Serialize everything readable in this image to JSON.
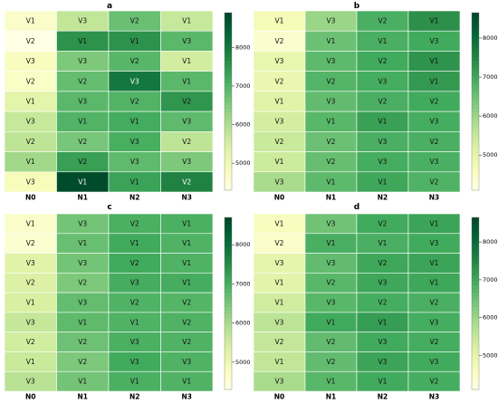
{
  "colorscale": [
    "#ffffe5",
    "#f7fcb9",
    "#d9f0a3",
    "#addd8e",
    "#78c679",
    "#41ab5d",
    "#238443",
    "#006837",
    "#004529"
  ],
  "chart_data": [
    {
      "type": "heatmap",
      "title": "a",
      "columns": [
        "N0",
        "N1",
        "N2",
        "N3"
      ],
      "labels": [
        [
          "V1",
          "V3",
          "V2",
          "V1"
        ],
        [
          "V2",
          "V1",
          "V1",
          "V3"
        ],
        [
          "V3",
          "V3",
          "V2",
          "V1"
        ],
        [
          "V2",
          "V2",
          "V3",
          "V1"
        ],
        [
          "V1",
          "V3",
          "V2",
          "V2"
        ],
        [
          "V3",
          "V1",
          "V1",
          "V3"
        ],
        [
          "V2",
          "V2",
          "V3",
          "V2"
        ],
        [
          "V1",
          "V2",
          "V3",
          "V3"
        ],
        [
          "V3",
          "V1",
          "V1",
          "V2"
        ]
      ],
      "values": [
        [
          4650,
          5750,
          6750,
          5700
        ],
        [
          4300,
          7550,
          7550,
          6900
        ],
        [
          4800,
          6550,
          6950,
          5550
        ],
        [
          4700,
          6800,
          8000,
          6900
        ],
        [
          5250,
          6900,
          7000,
          7500
        ],
        [
          5700,
          7000,
          7150,
          6850
        ],
        [
          5800,
          6600,
          7100,
          5800
        ],
        [
          6150,
          7350,
          6850,
          6550
        ],
        [
          4850,
          8800,
          7300,
          7800
        ]
      ],
      "colorbar": {
        "min": 4300,
        "max": 8900,
        "ticks": [
          5000,
          6000,
          7000,
          8000
        ]
      }
    },
    {
      "type": "heatmap",
      "title": "b",
      "columns": [
        "N0",
        "N1",
        "N2",
        "N3"
      ],
      "labels": [
        [
          "V1",
          "V3",
          "V2",
          "V1"
        ],
        [
          "V2",
          "V1",
          "V1",
          "V3"
        ],
        [
          "V3",
          "V3",
          "V2",
          "V1"
        ],
        [
          "V2",
          "V2",
          "V3",
          "V1"
        ],
        [
          "V1",
          "V3",
          "V2",
          "V2"
        ],
        [
          "V3",
          "V1",
          "V1",
          "V3"
        ],
        [
          "V2",
          "V2",
          "V3",
          "V2"
        ],
        [
          "V1",
          "V2",
          "V3",
          "V3"
        ],
        [
          "V3",
          "V1",
          "V1",
          "V2"
        ]
      ],
      "values": [
        [
          4700,
          6000,
          6850,
          7350
        ],
        [
          4400,
          6500,
          6850,
          6950
        ],
        [
          4950,
          6650,
          6950,
          7300
        ],
        [
          4900,
          6750,
          6900,
          7200
        ],
        [
          5100,
          6600,
          6850,
          6950
        ],
        [
          5300,
          6700,
          7100,
          6900
        ],
        [
          5450,
          6500,
          6850,
          6850
        ],
        [
          5400,
          6550,
          6900,
          6850
        ],
        [
          5850,
          6650,
          7000,
          6800
        ]
      ],
      "colorbar": {
        "min": 4100,
        "max": 8650,
        "ticks": [
          5000,
          6000,
          7000,
          8000
        ]
      }
    },
    {
      "type": "heatmap",
      "title": "c",
      "columns": [
        "N0",
        "N1",
        "N2",
        "N3"
      ],
      "labels": [
        [
          "V1",
          "V3",
          "V2",
          "V1"
        ],
        [
          "V2",
          "V1",
          "V1",
          "V1"
        ],
        [
          "V3",
          "V3",
          "V2",
          "V1"
        ],
        [
          "V2",
          "V2",
          "V3",
          "V1"
        ],
        [
          "V1",
          "V3",
          "V2",
          "V2"
        ],
        [
          "V3",
          "V1",
          "V1",
          "V2"
        ],
        [
          "V2",
          "V2",
          "V3",
          "V2"
        ],
        [
          "V1",
          "V2",
          "V3",
          "V3"
        ],
        [
          "V3",
          "V1",
          "V1",
          "V1"
        ]
      ],
      "values": [
        [
          4650,
          6550,
          6950,
          6950
        ],
        [
          4550,
          6650,
          7050,
          6900
        ],
        [
          5250,
          6550,
          7050,
          6900
        ],
        [
          5350,
          6450,
          7000,
          7000
        ],
        [
          5400,
          6700,
          6900,
          6850
        ],
        [
          5650,
          6750,
          6900,
          6900
        ],
        [
          5500,
          6600,
          6950,
          6900
        ],
        [
          5600,
          6450,
          7050,
          6900
        ],
        [
          5800,
          6550,
          6950,
          6900
        ]
      ],
      "colorbar": {
        "min": 4300,
        "max": 8700,
        "ticks": [
          5000,
          6000,
          7000,
          8000
        ]
      }
    },
    {
      "type": "heatmap",
      "title": "d",
      "columns": [
        "N0",
        "N1",
        "N2",
        "N3"
      ],
      "labels": [
        [
          "V1",
          "V3",
          "V2",
          "V1"
        ],
        [
          "V2",
          "V1",
          "V1",
          "V3"
        ],
        [
          "V3",
          "V3",
          "V2",
          "V1"
        ],
        [
          "V1",
          "V2",
          "V3",
          "V1"
        ],
        [
          "V1",
          "V3",
          "V2",
          "V2"
        ],
        [
          "V3",
          "V1",
          "V1",
          "V3"
        ],
        [
          "V2",
          "V2",
          "V3",
          "V2"
        ],
        [
          "V1",
          "V2",
          "V3",
          "V3"
        ],
        [
          "V3",
          "V1",
          "V1",
          "V2"
        ]
      ],
      "values": [
        [
          4600,
          6450,
          6950,
          7050
        ],
        [
          4450,
          6850,
          6850,
          6950
        ],
        [
          5000,
          6600,
          7000,
          7050
        ],
        [
          5050,
          6700,
          7000,
          7000
        ],
        [
          5350,
          6700,
          6900,
          6850
        ],
        [
          5600,
          6950,
          7150,
          6900
        ],
        [
          5500,
          6600,
          6950,
          6900
        ],
        [
          5550,
          6600,
          7050,
          6950
        ],
        [
          5850,
          6700,
          6950,
          6900
        ]
      ],
      "colorbar": {
        "min": 4100,
        "max": 8650,
        "ticks": [
          5000,
          6000,
          7000,
          8000
        ]
      }
    }
  ]
}
